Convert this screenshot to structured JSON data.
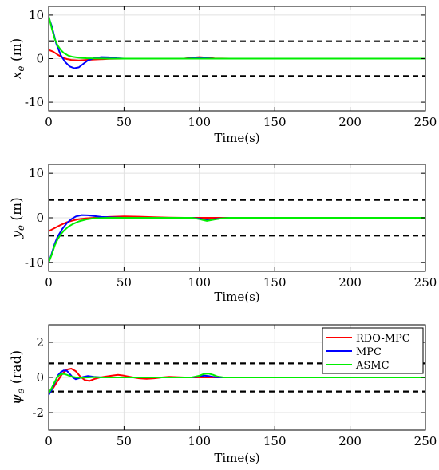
{
  "chart_data": [
    {
      "type": "line",
      "ylabel": "x_e (m)",
      "ylabel_main": "x",
      "ylabel_sub": "e",
      "ylabel_unit": "(m)",
      "xlabel": "Time(s)",
      "xlim": [
        0,
        250
      ],
      "ylim": [
        -12,
        12
      ],
      "xticks": [
        0,
        50,
        100,
        150,
        200,
        250
      ],
      "yticks": [
        -10,
        0,
        10
      ],
      "grid": true,
      "bounds": [
        4,
        -4
      ],
      "series": [
        {
          "name": "RDO-MPC",
          "color": "#ff0000",
          "x": [
            0,
            3,
            6,
            9,
            12,
            15,
            20,
            25,
            30,
            40,
            50,
            60,
            80,
            90,
            95,
            100,
            105,
            110,
            120,
            250
          ],
          "y": [
            2,
            1.6,
            0.9,
            0.3,
            -0.1,
            -0.3,
            -0.4,
            -0.3,
            -0.2,
            -0.05,
            0,
            0,
            0,
            0,
            0.2,
            0.35,
            0.2,
            0.05,
            0,
            0
          ]
        },
        {
          "name": "MPC",
          "color": "#0000ff",
          "x": [
            0,
            2,
            5,
            8,
            11,
            14,
            17,
            20,
            23,
            26,
            30,
            35,
            40,
            45,
            50,
            60,
            80,
            90,
            95,
            100,
            105,
            110,
            120,
            250
          ],
          "y": [
            9.5,
            7.5,
            3.5,
            0.8,
            -0.8,
            -1.8,
            -2.2,
            -2.0,
            -1.2,
            -0.4,
            0.1,
            0.35,
            0.3,
            0.1,
            0,
            0,
            0,
            0,
            0.1,
            0.25,
            0.1,
            0,
            0,
            0
          ]
        },
        {
          "name": "ASMC",
          "color": "#00ee00",
          "x": [
            0,
            2,
            4,
            6,
            8,
            10,
            13,
            16,
            20,
            25,
            30,
            40,
            50,
            250
          ],
          "y": [
            9.8,
            7.0,
            4.5,
            3.0,
            2.0,
            1.3,
            0.7,
            0.4,
            0.2,
            0.1,
            0.05,
            0,
            0,
            0
          ]
        }
      ]
    },
    {
      "type": "line",
      "ylabel": "y_e (m)",
      "ylabel_main": "y",
      "ylabel_sub": "e",
      "ylabel_unit": "(m)",
      "xlabel": "Time(s)",
      "xlim": [
        0,
        250
      ],
      "ylim": [
        -12,
        12
      ],
      "xticks": [
        0,
        50,
        100,
        150,
        200,
        250
      ],
      "yticks": [
        -10,
        0,
        10
      ],
      "grid": true,
      "bounds": [
        4,
        -4
      ],
      "series": [
        {
          "name": "RDO-MPC",
          "color": "#ff0000",
          "x": [
            0,
            4,
            8,
            12,
            16,
            20,
            25,
            30,
            40,
            50,
            60,
            70,
            80,
            90,
            100,
            110,
            120,
            250
          ],
          "y": [
            -3,
            -2.3,
            -1.6,
            -1.0,
            -0.6,
            -0.3,
            -0.1,
            0,
            0.2,
            0.3,
            0.25,
            0.15,
            0.05,
            0,
            0,
            0,
            0,
            0
          ]
        },
        {
          "name": "MPC",
          "color": "#0000ff",
          "x": [
            0,
            2,
            4,
            6,
            9,
            12,
            15,
            18,
            22,
            26,
            30,
            35,
            40,
            50,
            60,
            80,
            95,
            100,
            105,
            110,
            115,
            120,
            250
          ],
          "y": [
            -10,
            -8,
            -5.8,
            -4.2,
            -2.5,
            -1.2,
            -0.3,
            0.3,
            0.6,
            0.55,
            0.4,
            0.2,
            0.1,
            0,
            0,
            0,
            0,
            -0.2,
            -0.5,
            -0.3,
            -0.1,
            0,
            0
          ]
        },
        {
          "name": "ASMC",
          "color": "#00ee00",
          "x": [
            0,
            2,
            4,
            6,
            8,
            10,
            13,
            16,
            20,
            25,
            30,
            40,
            50,
            95,
            100,
            105,
            110,
            115,
            120,
            250
          ],
          "y": [
            -10,
            -8.3,
            -6.2,
            -4.8,
            -3.7,
            -2.9,
            -2.0,
            -1.4,
            -0.8,
            -0.35,
            -0.1,
            0,
            0,
            0,
            -0.3,
            -0.7,
            -0.4,
            -0.1,
            0,
            0
          ]
        }
      ]
    },
    {
      "type": "line",
      "ylabel": "ψ_e (rad)",
      "ylabel_main": "ψ",
      "ylabel_sub": "e",
      "ylabel_unit": "(rad)",
      "xlabel": "Time(s)",
      "xlim": [
        0,
        250
      ],
      "ylim": [
        -3,
        3
      ],
      "xticks": [
        0,
        50,
        100,
        150,
        200,
        250
      ],
      "yticks": [
        -2,
        0,
        2
      ],
      "grid": true,
      "bounds": [
        0.8,
        -0.8
      ],
      "legend_position": "top-right",
      "series": [
        {
          "name": "RDO-MPC",
          "color": "#ff0000",
          "x": [
            0,
            3,
            6,
            9,
            12,
            15,
            18,
            21,
            24,
            27,
            30,
            34,
            38,
            42,
            46,
            50,
            55,
            60,
            65,
            70,
            75,
            80,
            90,
            100,
            250
          ],
          "y": [
            -0.8,
            -0.6,
            -0.2,
            0.2,
            0.45,
            0.5,
            0.35,
            0.05,
            -0.15,
            -0.2,
            -0.1,
            0,
            0.05,
            0.1,
            0.15,
            0.1,
            0.02,
            -0.05,
            -0.08,
            -0.05,
            0,
            0.03,
            0,
            0,
            0
          ]
        },
        {
          "name": "MPC",
          "color": "#0000ff",
          "x": [
            0,
            2,
            4,
            6,
            8,
            10,
            12,
            14,
            16,
            18,
            20,
            23,
            26,
            30,
            35,
            40,
            50,
            60,
            80,
            95,
            100,
            103,
            106,
            110,
            115,
            120,
            250
          ],
          "y": [
            -1.0,
            -0.7,
            -0.3,
            0.1,
            0.3,
            0.4,
            0.38,
            0.2,
            0,
            -0.1,
            -0.05,
            0.03,
            0.08,
            0.03,
            0,
            0,
            0,
            0,
            0,
            0,
            0.05,
            0.1,
            0.08,
            0.02,
            0,
            0,
            0
          ]
        },
        {
          "name": "ASMC",
          "color": "#00ee00",
          "x": [
            0,
            2,
            4,
            6,
            8,
            10,
            12,
            15,
            18,
            22,
            26,
            30,
            35,
            40,
            50,
            60,
            80,
            95,
            100,
            103,
            106,
            109,
            112,
            116,
            120,
            250
          ],
          "y": [
            -0.9,
            -0.6,
            -0.25,
            0.05,
            0.18,
            0.2,
            0.15,
            0.05,
            0,
            -0.02,
            0,
            0.02,
            0,
            0,
            0,
            0,
            0,
            0,
            0.1,
            0.2,
            0.22,
            0.15,
            0.05,
            0,
            0,
            0
          ]
        }
      ]
    }
  ]
}
